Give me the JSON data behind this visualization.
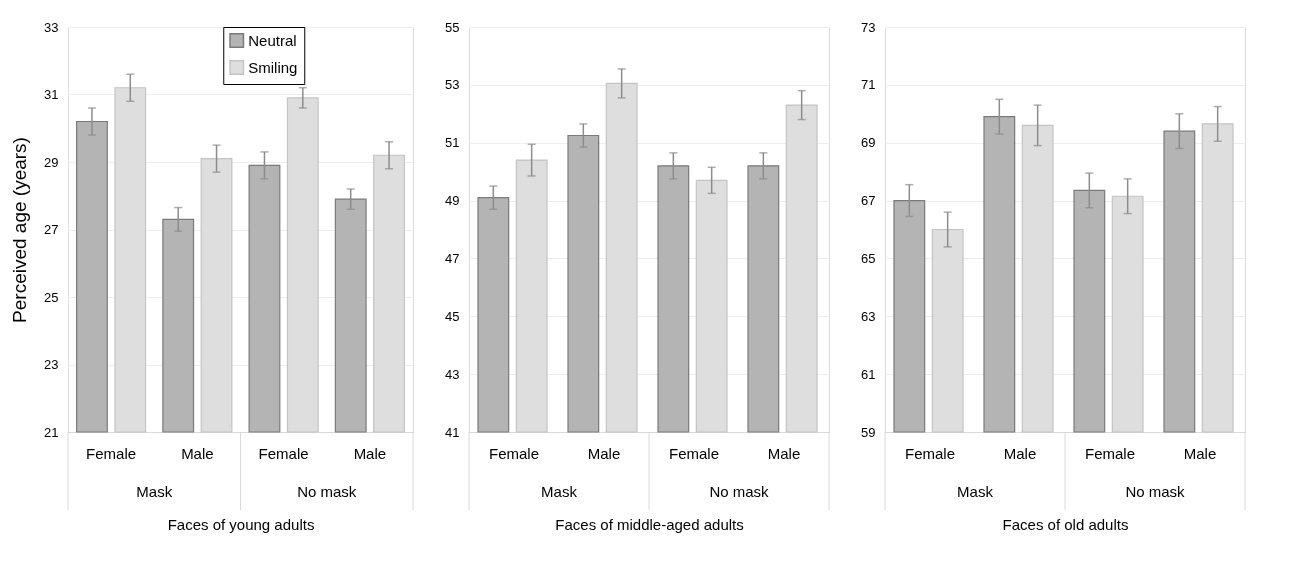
{
  "chart_data": [
    {
      "type": "bar",
      "xlabel": "Faces of young adults",
      "ylabel": "Perceived age (years)",
      "categories": [
        "Female",
        "Male",
        "Female",
        "Male"
      ],
      "annotations": [
        "Mask",
        "No mask"
      ],
      "ylim": [
        21,
        33
      ],
      "yticks": [
        21,
        23,
        25,
        27,
        29,
        31,
        33
      ],
      "grid": "y",
      "legend": "top",
      "series": [
        {
          "name": "Neutral",
          "color": "#b4b4b4",
          "values": [
            30.2,
            27.3,
            28.9,
            27.9
          ],
          "errors": [
            0.4,
            0.35,
            0.4,
            0.3
          ]
        },
        {
          "name": "Smiling",
          "color": "#dedede",
          "values": [
            31.2,
            29.1,
            30.9,
            29.2
          ],
          "errors": [
            0.4,
            0.4,
            0.3,
            0.4
          ]
        }
      ]
    },
    {
      "type": "bar",
      "xlabel": "Faces of middle-aged adults",
      "categories": [
        "Female",
        "Male",
        "Female",
        "Male"
      ],
      "annotations": [
        "Mask",
        "No mask"
      ],
      "ylim": [
        41,
        55
      ],
      "yticks": [
        41,
        43,
        45,
        47,
        49,
        51,
        53,
        55
      ],
      "grid": "y",
      "series": [
        {
          "color": "#b4b4b4",
          "values": [
            49.1,
            51.25,
            50.2,
            50.2
          ],
          "errors": [
            0.4,
            0.4,
            0.45,
            0.45
          ]
        },
        {
          "color": "#dedede",
          "values": [
            50.4,
            53.05,
            49.7,
            52.3
          ],
          "errors": [
            0.55,
            0.5,
            0.45,
            0.5
          ]
        }
      ]
    },
    {
      "type": "bar",
      "xlabel": "Faces of old adults",
      "categories": [
        "Female",
        "Male",
        "Female",
        "Male"
      ],
      "annotations": [
        "Mask",
        "No mask"
      ],
      "ylim": [
        59,
        73
      ],
      "yticks": [
        59,
        61,
        63,
        65,
        67,
        69,
        71,
        73
      ],
      "grid": "y",
      "series": [
        {
          "color": "#b4b4b4",
          "values": [
            67.0,
            69.9,
            67.35,
            69.4
          ],
          "errors": [
            0.55,
            0.6,
            0.6,
            0.6
          ]
        },
        {
          "color": "#dedede",
          "values": [
            66.0,
            69.6,
            67.15,
            69.65
          ],
          "errors": [
            0.6,
            0.7,
            0.6,
            0.6
          ]
        }
      ]
    }
  ]
}
